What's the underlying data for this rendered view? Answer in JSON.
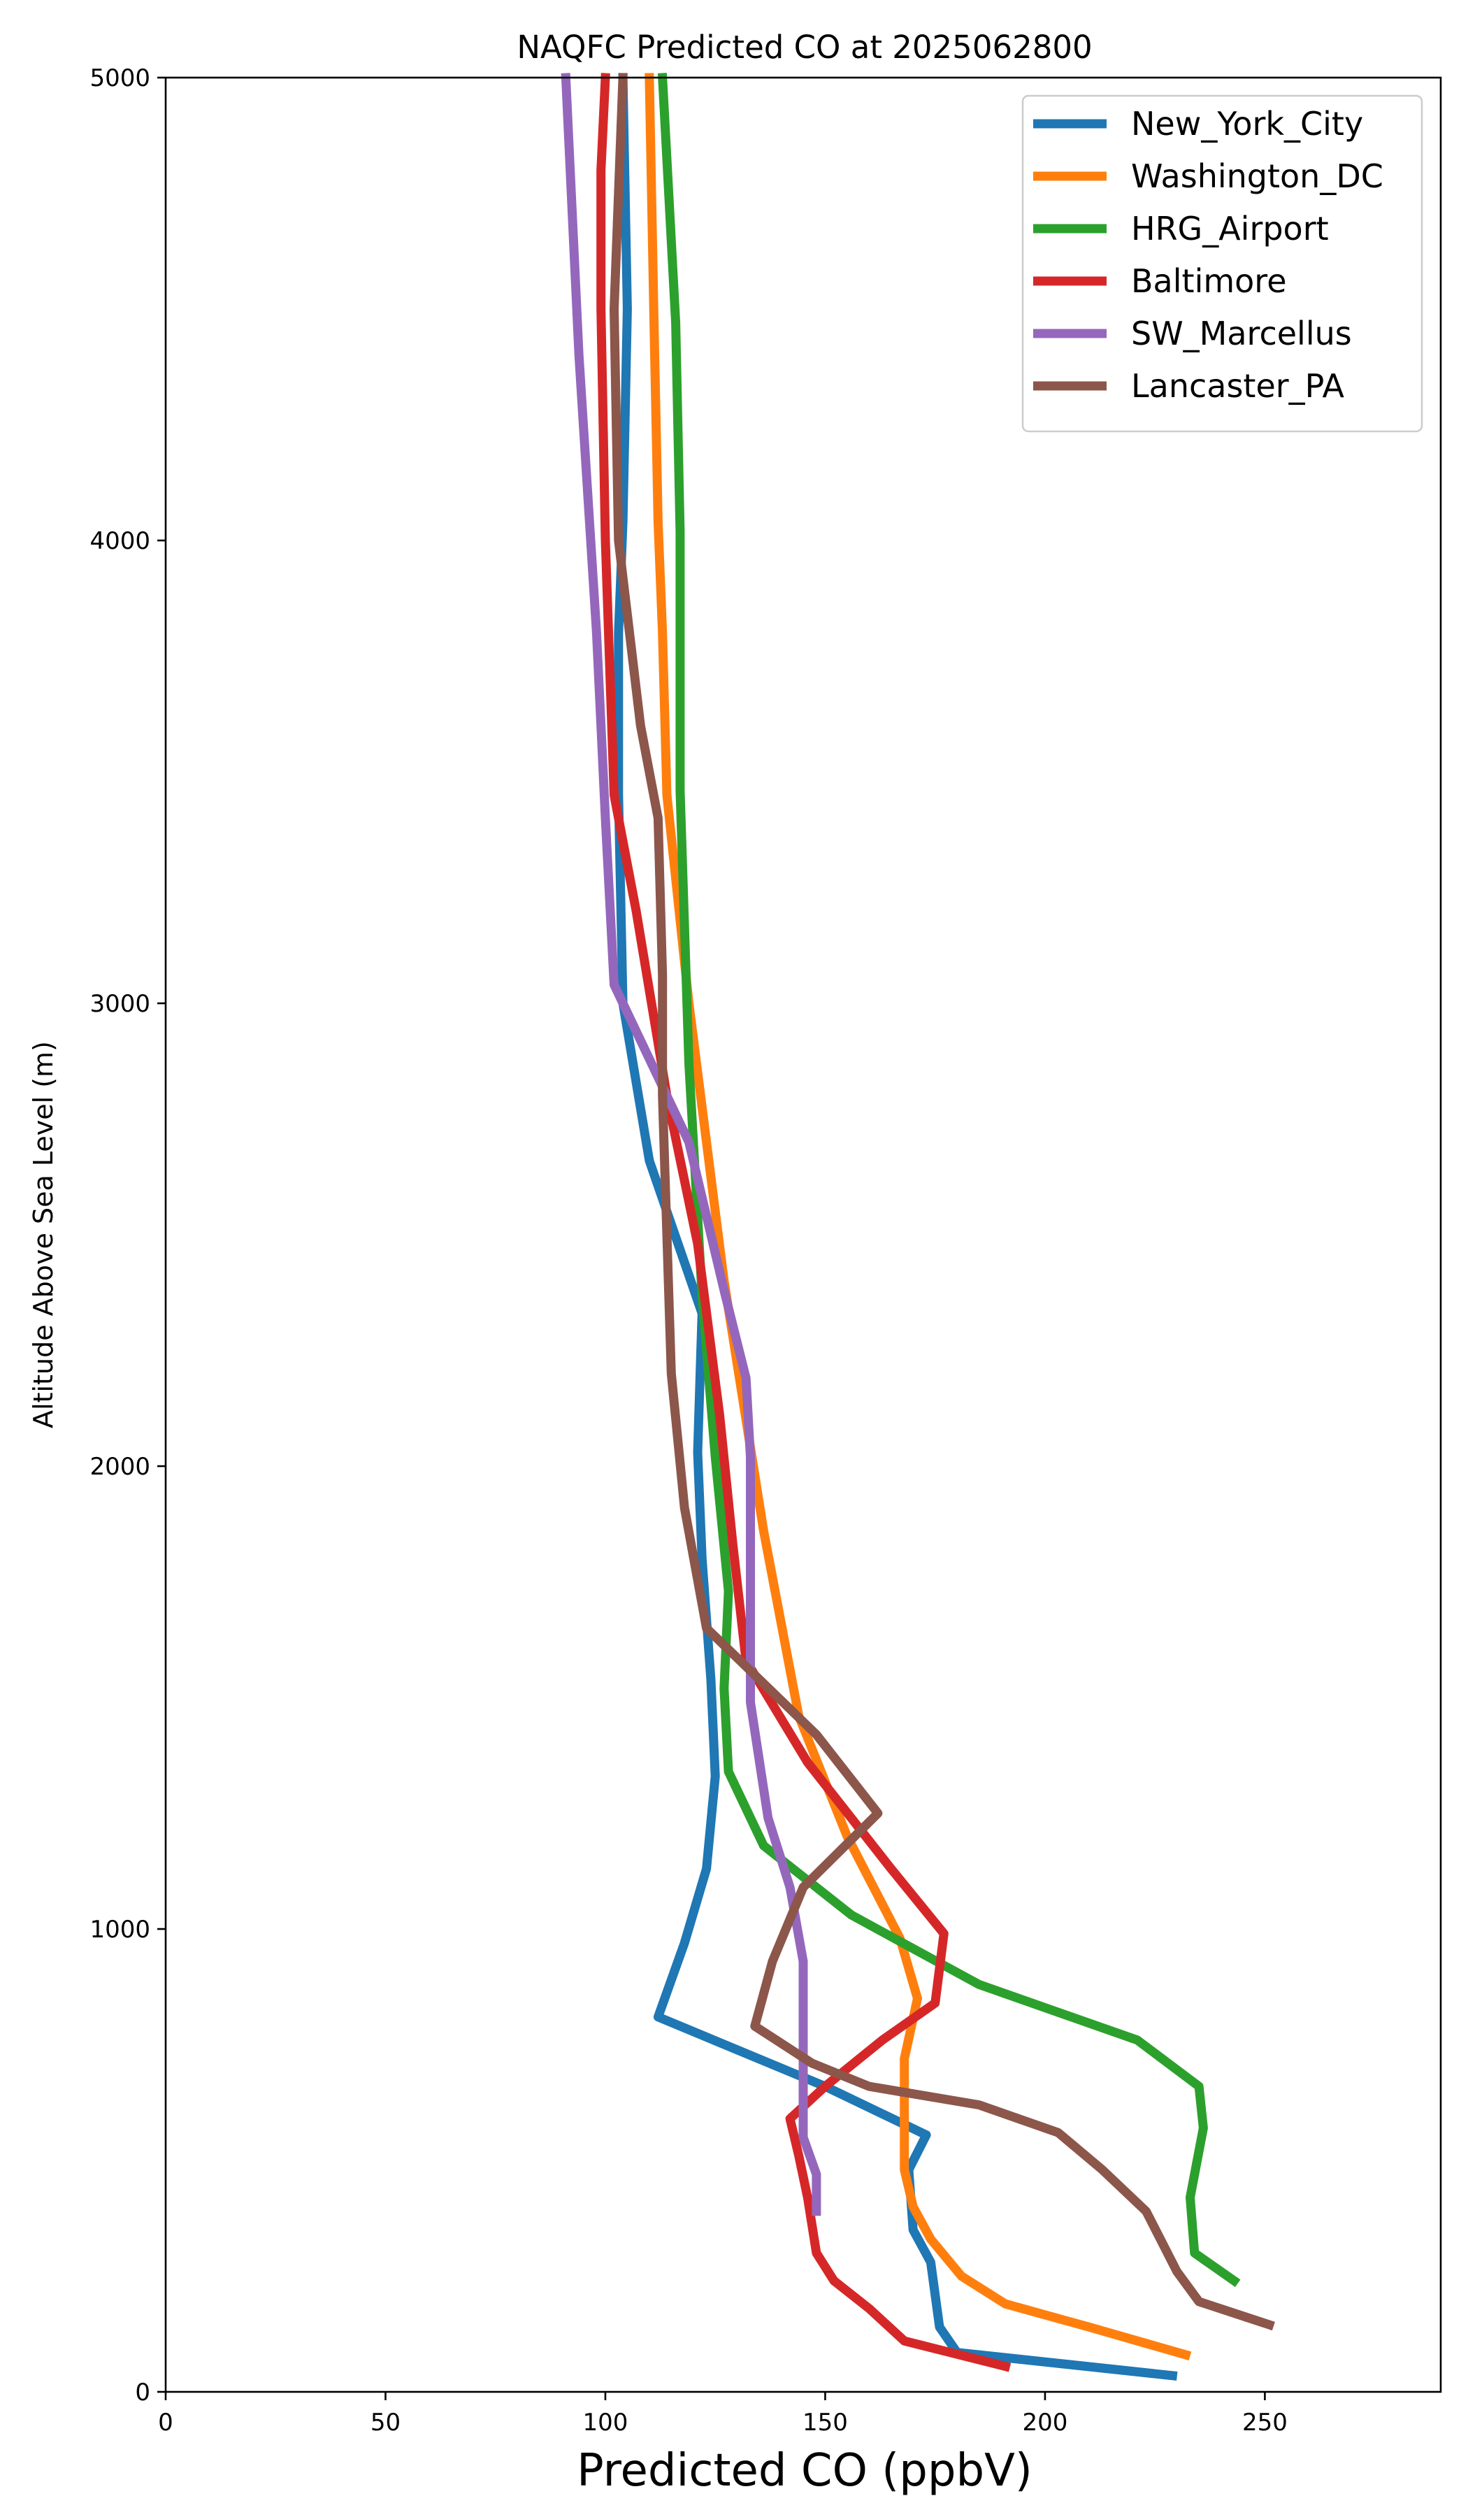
{
  "chart_data": {
    "type": "line",
    "title": "NAQFC Predicted CO at 2025062800",
    "xlabel": "Predicted CO (ppbV)",
    "ylabel": "Altitude Above Sea Level (m)",
    "xlim": [
      0,
      290
    ],
    "ylim": [
      0,
      5000
    ],
    "x_ticks": [
      "0",
      "50",
      "100",
      "150",
      "200",
      "250"
    ],
    "y_ticks": [
      "0",
      "1000",
      "2000",
      "3000",
      "4000",
      "5000"
    ],
    "grid": false,
    "legend_position": "top-right",
    "series": [
      {
        "name": "New_York_City",
        "color": "#1f77b4",
        "points": [
          [
            229,
            35
          ],
          [
            180,
            85
          ],
          [
            176,
            140
          ],
          [
            174,
            280
          ],
          [
            170,
            350
          ],
          [
            169,
            480
          ],
          [
            173,
            555
          ],
          [
            150,
            660
          ],
          [
            112,
            810
          ],
          [
            118,
            970
          ],
          [
            123,
            1130
          ],
          [
            125,
            1330
          ],
          [
            124,
            1540
          ],
          [
            122,
            1800
          ],
          [
            121,
            2030
          ],
          [
            122,
            2330
          ],
          [
            110,
            2660
          ],
          [
            104,
            3000
          ],
          [
            103,
            3450
          ],
          [
            103,
            3800
          ],
          [
            104,
            4040
          ],
          [
            105,
            4500
          ],
          [
            104,
            5000
          ]
        ]
      },
      {
        "name": "Washington_DC",
        "color": "#ff7f0e",
        "points": [
          [
            232,
            80
          ],
          [
            210,
            140
          ],
          [
            191,
            190
          ],
          [
            181,
            250
          ],
          [
            174,
            330
          ],
          [
            170,
            400
          ],
          [
            168,
            480
          ],
          [
            168,
            590
          ],
          [
            168,
            720
          ],
          [
            171,
            850
          ],
          [
            167,
            980
          ],
          [
            155,
            1200
          ],
          [
            144,
            1460
          ],
          [
            136,
            1860
          ],
          [
            127,
            2400
          ],
          [
            119,
            3000
          ],
          [
            114,
            3450
          ],
          [
            113,
            3800
          ],
          [
            112,
            4040
          ],
          [
            111,
            4500
          ],
          [
            110,
            5000
          ]
        ]
      },
      {
        "name": "HRG_Airport",
        "color": "#2ca02c",
        "points": [
          [
            243,
            240
          ],
          [
            234,
            300
          ],
          [
            233,
            420
          ],
          [
            236,
            570
          ],
          [
            235,
            660
          ],
          [
            221,
            760
          ],
          [
            185,
            880
          ],
          [
            156,
            1030
          ],
          [
            136,
            1180
          ],
          [
            128,
            1340
          ],
          [
            127,
            1520
          ],
          [
            128,
            1730
          ],
          [
            125,
            2020
          ],
          [
            122,
            2370
          ],
          [
            119,
            2870
          ],
          [
            117,
            3460
          ],
          [
            117,
            4020
          ],
          [
            116,
            4470
          ],
          [
            113,
            5000
          ]
        ]
      },
      {
        "name": "Baltimore",
        "color": "#d62728",
        "points": [
          [
            191,
            55
          ],
          [
            168,
            110
          ],
          [
            160,
            180
          ],
          [
            152,
            240
          ],
          [
            148,
            300
          ],
          [
            146,
            420
          ],
          [
            144,
            510
          ],
          [
            142,
            590
          ],
          [
            150,
            660
          ],
          [
            163,
            760
          ],
          [
            175,
            840
          ],
          [
            177,
            990
          ],
          [
            165,
            1130
          ],
          [
            146,
            1360
          ],
          [
            132,
            1580
          ],
          [
            129,
            1830
          ],
          [
            126,
            2110
          ],
          [
            121,
            2480
          ],
          [
            114,
            2800
          ],
          [
            107,
            3200
          ],
          [
            102,
            3450
          ],
          [
            100,
            4000
          ],
          [
            99,
            4500
          ],
          [
            99,
            4800
          ],
          [
            100,
            5000
          ]
        ]
      },
      {
        "name": "SW_Marcellus",
        "color": "#9467bd",
        "points": [
          [
            148,
            390
          ],
          [
            148,
            470
          ],
          [
            145,
            550
          ],
          [
            145,
            620
          ],
          [
            145,
            720
          ],
          [
            145,
            930
          ],
          [
            142,
            1090
          ],
          [
            137,
            1240
          ],
          [
            133,
            1490
          ],
          [
            133,
            1800
          ],
          [
            133,
            2020
          ],
          [
            132,
            2190
          ],
          [
            127,
            2380
          ],
          [
            119,
            2700
          ],
          [
            102,
            3040
          ],
          [
            100,
            3400
          ],
          [
            98,
            3800
          ],
          [
            94,
            4400
          ],
          [
            91,
            5000
          ]
        ]
      },
      {
        "name": "Lancaster_PA",
        "color": "#8c564b",
        "points": [
          [
            251,
            145
          ],
          [
            235,
            195
          ],
          [
            230,
            260
          ],
          [
            223,
            390
          ],
          [
            213,
            480
          ],
          [
            203,
            560
          ],
          [
            185,
            620
          ],
          [
            160,
            660
          ],
          [
            147,
            710
          ],
          [
            134,
            790
          ],
          [
            138,
            930
          ],
          [
            145,
            1090
          ],
          [
            162,
            1250
          ],
          [
            148,
            1420
          ],
          [
            123,
            1650
          ],
          [
            118,
            1910
          ],
          [
            115,
            2200
          ],
          [
            114,
            2500
          ],
          [
            113,
            2800
          ],
          [
            113,
            3060
          ],
          [
            112,
            3400
          ],
          [
            108,
            3600
          ],
          [
            103,
            4000
          ],
          [
            102,
            4500
          ],
          [
            104,
            5000
          ]
        ]
      }
    ]
  }
}
